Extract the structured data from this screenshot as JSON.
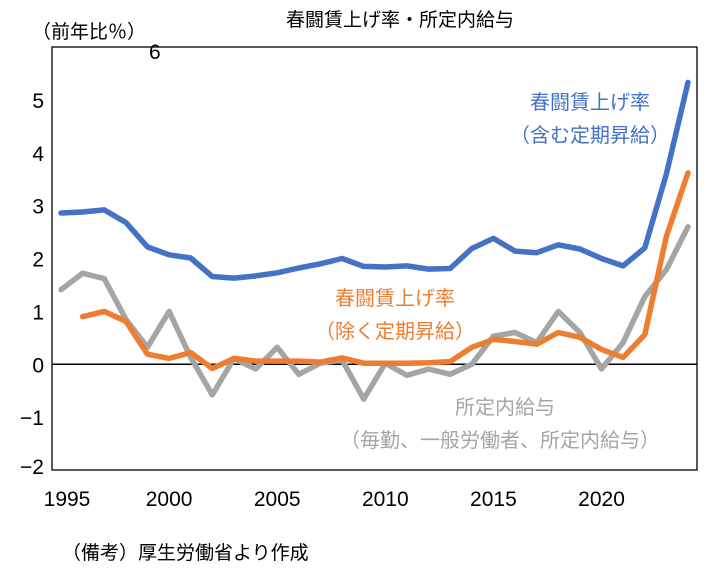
{
  "chart_data": {
    "type": "line",
    "title": "春闘賃上げ率・所定内給与",
    "ylabel": "（前年比％）",
    "xlabel": "",
    "ylim": [
      -2,
      6
    ],
    "yticks": [
      "6",
      "5",
      "4",
      "3",
      "2",
      "1",
      "0",
      "−1",
      "−2"
    ],
    "ytick_values": [
      6,
      5,
      4,
      3,
      2,
      1,
      0,
      -1,
      -2
    ],
    "xlim": [
      1995,
      2024
    ],
    "xticks": [
      "1995",
      "2000",
      "2005",
      "2010",
      "2015",
      "2020"
    ],
    "xtick_values": [
      1995,
      2000,
      2005,
      2010,
      2015,
      2020
    ],
    "grid": false,
    "zero_line": true,
    "x": [
      1995,
      1996,
      1997,
      1998,
      1999,
      2000,
      2001,
      2002,
      2003,
      2004,
      2005,
      2006,
      2007,
      2008,
      2009,
      2010,
      2011,
      2012,
      2013,
      2014,
      2015,
      2016,
      2017,
      2018,
      2019,
      2020,
      2021,
      2022,
      2023,
      2024
    ],
    "series": [
      {
        "name": "春闘賃上げ率（含む定期昇給）",
        "label_lines": [
          "春闘賃上げ率",
          "（含む定期昇給）"
        ],
        "color": "#4472C4",
        "values": [
          2.86,
          2.88,
          2.92,
          2.68,
          2.22,
          2.07,
          2.01,
          1.66,
          1.63,
          1.67,
          1.73,
          1.82,
          1.9,
          2.0,
          1.85,
          1.84,
          1.86,
          1.8,
          1.81,
          2.19,
          2.38,
          2.14,
          2.11,
          2.26,
          2.18,
          2.0,
          1.86,
          2.2,
          3.6,
          5.33
        ]
      },
      {
        "name": "春闘賃上げ率（除く定期昇給）",
        "label_lines": [
          "春闘賃上げ率",
          "（除く定期昇給）"
        ],
        "color": "#ED7D31",
        "values": [
          null,
          0.9,
          1.0,
          0.81,
          0.19,
          0.11,
          0.22,
          -0.08,
          0.11,
          0.06,
          0.06,
          0.06,
          0.04,
          0.12,
          0.02,
          0.02,
          0.02,
          0.03,
          0.05,
          0.32,
          0.47,
          0.43,
          0.38,
          0.6,
          0.51,
          0.28,
          0.13,
          0.56,
          2.42,
          3.62
        ]
      },
      {
        "name": "所定内給与（毎勤、一般労働者、所定内給与）",
        "label_lines": [
          "所定内給与",
          "（毎勤、一般労働者、所定内給与）"
        ],
        "color": "#A5A5A5",
        "values": [
          1.41,
          1.72,
          1.62,
          0.85,
          0.32,
          1.0,
          0.13,
          -0.58,
          0.11,
          -0.09,
          0.32,
          -0.19,
          0.02,
          0.08,
          -0.66,
          0.02,
          -0.21,
          -0.09,
          -0.19,
          0.0,
          0.53,
          0.6,
          0.41,
          1.0,
          0.6,
          -0.09,
          0.41,
          1.28,
          1.79,
          2.6
        ]
      }
    ]
  },
  "footnote": "（備考）厚生労働省より作成"
}
